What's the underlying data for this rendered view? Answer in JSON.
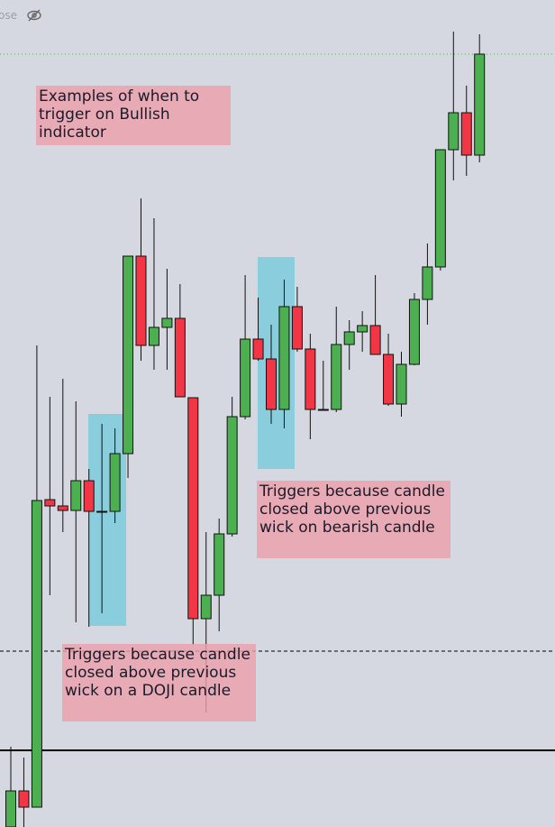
{
  "chart_data": {
    "type": "candlestick",
    "header_text": "ose",
    "categories": [
      null,
      null,
      null,
      null,
      null,
      null,
      null,
      null,
      null,
      null,
      null,
      null,
      null,
      null,
      null,
      null,
      null,
      null,
      null,
      null,
      null,
      null,
      null,
      null,
      null,
      null,
      null,
      null,
      null,
      null,
      null,
      null,
      null,
      null,
      null,
      null,
      null
    ],
    "open": [
      0,
      40,
      22,
      363,
      356,
      351,
      384,
      350,
      350,
      414,
      633,
      534,
      554,
      564,
      476,
      231,
      257,
      325,
      455,
      541,
      519,
      463,
      577,
      530,
      463,
      463,
      535,
      549,
      556,
      524,
      469,
      513,
      585,
      621,
      751,
      792,
      745
    ],
    "high": [
      89,
      77,
      534,
      477,
      497,
      472,
      397,
      447,
      442,
      633,
      697,
      675,
      619,
      602,
      476,
      327,
      342,
      477,
      612,
      587,
      557,
      607,
      599,
      547,
      517,
      577,
      562,
      572,
      612,
      547,
      527,
      592,
      647,
      751,
      882,
      822,
      879
    ],
    "low": [
      0,
      0,
      22,
      257,
      327,
      227,
      222,
      237,
      337,
      387,
      517,
      507,
      507,
      477,
      202,
      127,
      217,
      322,
      452,
      517,
      447,
      442,
      527,
      430,
      462,
      460,
      507,
      527,
      524,
      467,
      455,
      512,
      557,
      617,
      717,
      722,
      737
    ],
    "close": [
      40,
      22,
      362,
      356,
      351,
      384,
      350,
      350,
      414,
      633,
      534,
      554,
      564,
      477,
      231,
      257,
      325,
      455,
      541,
      519,
      463,
      577,
      530,
      463,
      463,
      535,
      549,
      556,
      524,
      469,
      513,
      585,
      621,
      751,
      792,
      745,
      857
    ],
    "up_color": "#4caf50",
    "down_color": "#f23645",
    "ylim": [
      0,
      917
    ],
    "levels": [
      {
        "value": 857,
        "style": "dotted",
        "color": "#4caf50"
      },
      {
        "value": 195,
        "style": "dashed",
        "color": "#000000"
      },
      {
        "value": 85,
        "style": "solid",
        "color": "#000000"
      }
    ],
    "annotations": [
      "Examples of when to trigger on Bullish indicator",
      "Triggers because candle closed above previous wick on bearish candle",
      "Triggers because candle closed above previous wick on a DOJI candle"
    ]
  }
}
